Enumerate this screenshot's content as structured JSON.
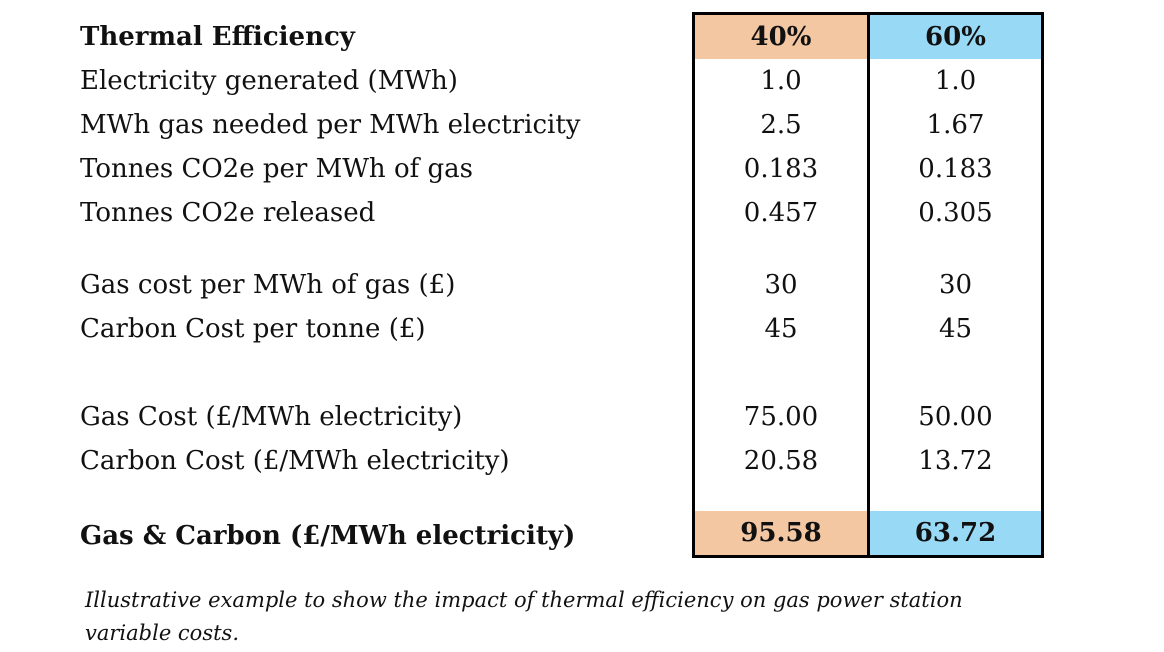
{
  "table": {
    "header": {
      "label": "Thermal Efficiency",
      "col1": "40%",
      "col2": "60%"
    },
    "rows": [
      {
        "label": "Electricity generated (MWh)",
        "v1": "1.0",
        "v2": "1.0"
      },
      {
        "label": "MWh gas needed per MWh electricity",
        "v1": "2.5",
        "v2": "1.67"
      },
      {
        "label": "Tonnes CO2e per MWh of gas",
        "v1": "0.183",
        "v2": "0.183"
      },
      {
        "label": "Tonnes CO2e released",
        "v1": "0.457",
        "v2": "0.305"
      },
      {
        "label": "Gas cost per MWh of gas (£)",
        "v1": "30",
        "v2": "30"
      },
      {
        "label": "Carbon Cost per tonne (£)",
        "v1": "45",
        "v2": "45"
      },
      {
        "label": "Gas Cost (£/MWh electricity)",
        "v1": "75.00",
        "v2": "50.00"
      },
      {
        "label": "Carbon Cost (£/MWh electricity)",
        "v1": "20.58",
        "v2": "13.72"
      }
    ],
    "total_row": {
      "label": "Gas & Carbon (£/MWh electricity)",
      "v1": "95.58",
      "v2": "63.72"
    }
  },
  "caption": "Illustrative example to show the impact of thermal efficiency on gas power station variable costs.",
  "colors": {
    "efficiency_40_bg": "#F4C7A3",
    "efficiency_60_bg": "#98DAF6",
    "border": "#000000"
  },
  "chart_data": {
    "type": "table",
    "title": "Thermal Efficiency",
    "columns": [
      "Thermal Efficiency",
      "40%",
      "60%"
    ],
    "rows": [
      [
        "Electricity generated (MWh)",
        "1.0",
        "1.0"
      ],
      [
        "MWh gas needed per MWh electricity",
        "2.5",
        "1.67"
      ],
      [
        "Tonnes CO2e per MWh of gas",
        "0.183",
        "0.183"
      ],
      [
        "Tonnes CO2e released",
        "0.457",
        "0.305"
      ],
      [
        "Gas cost per MWh of gas (£)",
        "30",
        "30"
      ],
      [
        "Carbon Cost per tonne (£)",
        "45",
        "45"
      ],
      [
        "Gas Cost (£/MWh electricity)",
        "75.00",
        "50.00"
      ],
      [
        "Carbon Cost (£/MWh electricity)",
        "20.58",
        "13.72"
      ],
      [
        "Gas & Carbon (£/MWh electricity)",
        "95.58",
        "63.72"
      ]
    ],
    "annotations": [
      "Illustrative example to show the impact of thermal efficiency on gas power station variable costs."
    ]
  }
}
